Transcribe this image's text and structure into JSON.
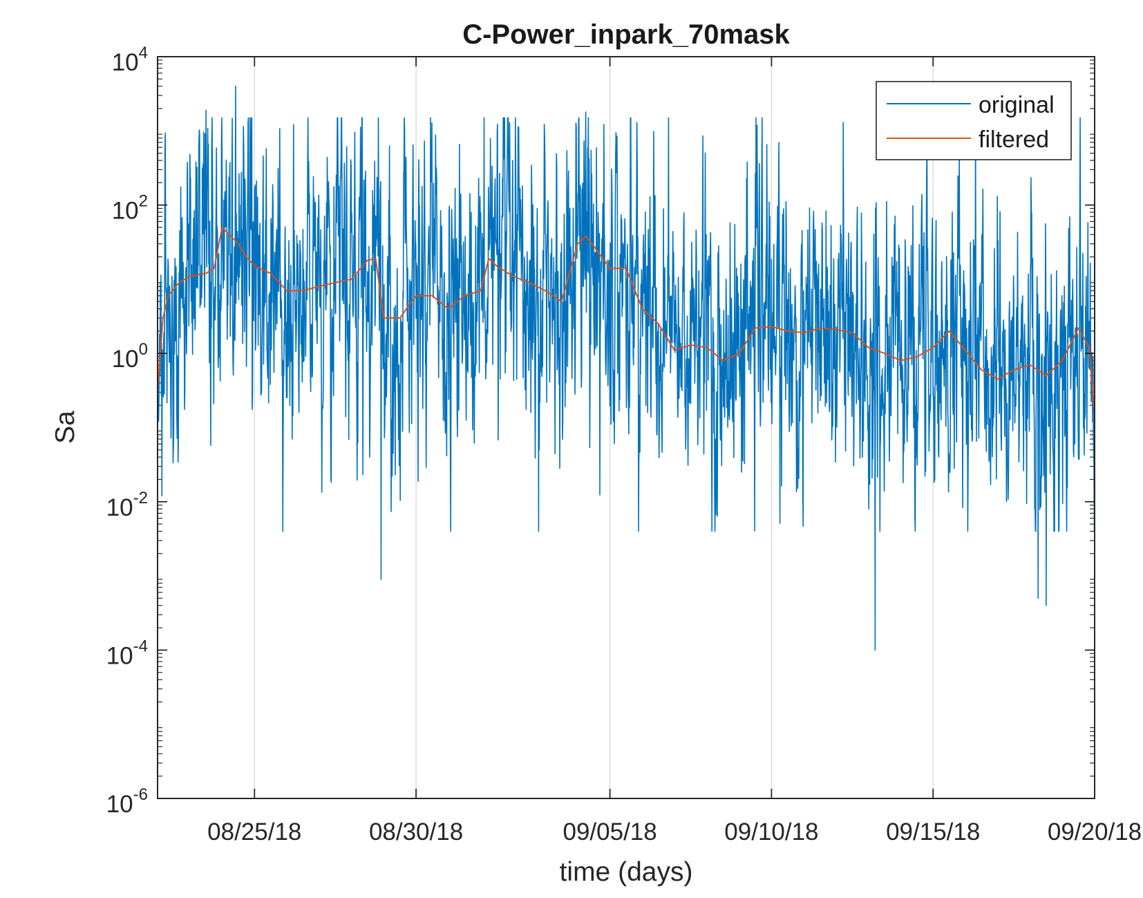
{
  "chart_data": {
    "type": "line",
    "title": "C-Power_inpark_70mask",
    "xlabel": "time (days)",
    "ylabel": "Sa",
    "y_scale": "log",
    "y_ticks": [
      {
        "value": 10000.0,
        "base": "10",
        "exp": "4"
      },
      {
        "value": 100.0,
        "base": "10",
        "exp": "2"
      },
      {
        "value": 1.0,
        "base": "10",
        "exp": "0"
      },
      {
        "value": 0.01,
        "base": "10",
        "exp": "-2"
      },
      {
        "value": 0.0001,
        "base": "10",
        "exp": "-4"
      },
      {
        "value": 1e-06,
        "base": "10",
        "exp": "-6"
      }
    ],
    "ylim": [
      1e-06,
      10000.0
    ],
    "xlim": [
      "2018-08-22",
      "2018-09-20"
    ],
    "x_ticks": [
      {
        "date": "2018-08-25",
        "label": "08/25/18"
      },
      {
        "date": "2018-08-30",
        "label": "08/30/18"
      },
      {
        "date": "2018-09-05",
        "label": "09/05/18"
      },
      {
        "date": "2018-09-10",
        "label": "09/10/18"
      },
      {
        "date": "2018-09-15",
        "label": "09/15/18"
      },
      {
        "date": "2018-09-20",
        "label": "09/20/18"
      }
    ],
    "grid": "vertical",
    "legend": {
      "position": "top-right",
      "entries": [
        "original",
        "filtered"
      ]
    },
    "series": [
      {
        "name": "filtered",
        "color": "#d95319",
        "x": [
          "2018-08-22",
          "2018-08-22T04:00",
          "2018-08-22T08:00",
          "2018-08-22T16:00",
          "2018-08-23",
          "2018-08-23T12:00",
          "2018-08-23T18:00",
          "2018-08-24",
          "2018-08-24T12:00",
          "2018-08-24T18:00",
          "2018-08-25",
          "2018-08-25T12:00",
          "2018-08-26",
          "2018-08-26T12:00",
          "2018-08-27",
          "2018-08-27T12:00",
          "2018-08-28",
          "2018-08-28T12:00",
          "2018-08-28T18:00",
          "2018-08-29",
          "2018-08-29T12:00",
          "2018-08-30",
          "2018-08-30T12:00",
          "2018-08-31",
          "2018-08-31T12:00",
          "2018-09-01",
          "2018-09-01T06:00",
          "2018-09-01T12:00",
          "2018-09-02",
          "2018-09-02T12:00",
          "2018-09-03",
          "2018-09-03T12:00",
          "2018-09-04",
          "2018-09-04T06:00",
          "2018-09-04T12:00",
          "2018-09-05",
          "2018-09-05T12:00",
          "2018-09-06",
          "2018-09-06T12:00",
          "2018-09-07",
          "2018-09-07T12:00",
          "2018-09-08",
          "2018-09-08T12:00",
          "2018-09-09",
          "2018-09-09T12:00",
          "2018-09-10",
          "2018-09-10T12:00",
          "2018-09-11",
          "2018-09-11T12:00",
          "2018-09-12",
          "2018-09-12T12:00",
          "2018-09-13",
          "2018-09-13T12:00",
          "2018-09-14",
          "2018-09-14T12:00",
          "2018-09-15",
          "2018-09-15T12:00",
          "2018-09-16",
          "2018-09-16T12:00",
          "2018-09-17",
          "2018-09-17T12:00",
          "2018-09-18",
          "2018-09-18T12:00",
          "2018-09-19",
          "2018-09-19T12:00",
          "2018-09-19T20:00",
          "2018-09-20"
        ],
        "y": [
          0.3,
          3,
          6,
          9,
          11,
          12,
          14,
          50,
          30,
          20,
          15,
          12,
          7,
          7,
          8,
          9,
          10,
          18,
          19,
          3,
          3,
          6,
          6,
          4,
          6,
          7,
          19,
          15,
          11,
          9,
          7,
          5,
          30,
          38,
          28,
          14,
          14,
          4,
          2.5,
          1.1,
          1.3,
          1.2,
          0.8,
          1.0,
          2.2,
          2.3,
          2.0,
          1.9,
          2.2,
          2.1,
          1.9,
          1.2,
          1.0,
          0.8,
          0.9,
          1.2,
          2.0,
          1.1,
          0.6,
          0.45,
          0.6,
          0.7,
          0.5,
          0.8,
          2.2,
          1.2,
          0.15
        ]
      }
    ],
    "original_series": {
      "name": "original",
      "color": "#0072bd",
      "x_start": "2018-08-22",
      "x_step_hours": 0.25,
      "y_range_observed": [
        0.0001,
        4000.0
      ],
      "notable_peaks": [
        {
          "x": "2018-08-24T10:00",
          "y": 4000
        },
        {
          "x": "2018-09-04T06:00",
          "y": 1800
        },
        {
          "x": "2018-08-23T12:00",
          "y": 1900
        }
      ],
      "notable_troughs": [
        {
          "x": "2018-09-13T05:00",
          "y": 0.0001
        },
        {
          "x": "2018-08-28T22:00",
          "y": 0.0009
        },
        {
          "x": "2018-09-18T12:00",
          "y": 0.0004
        },
        {
          "x": "2018-09-18T06:00",
          "y": 0.0005
        }
      ]
    }
  }
}
